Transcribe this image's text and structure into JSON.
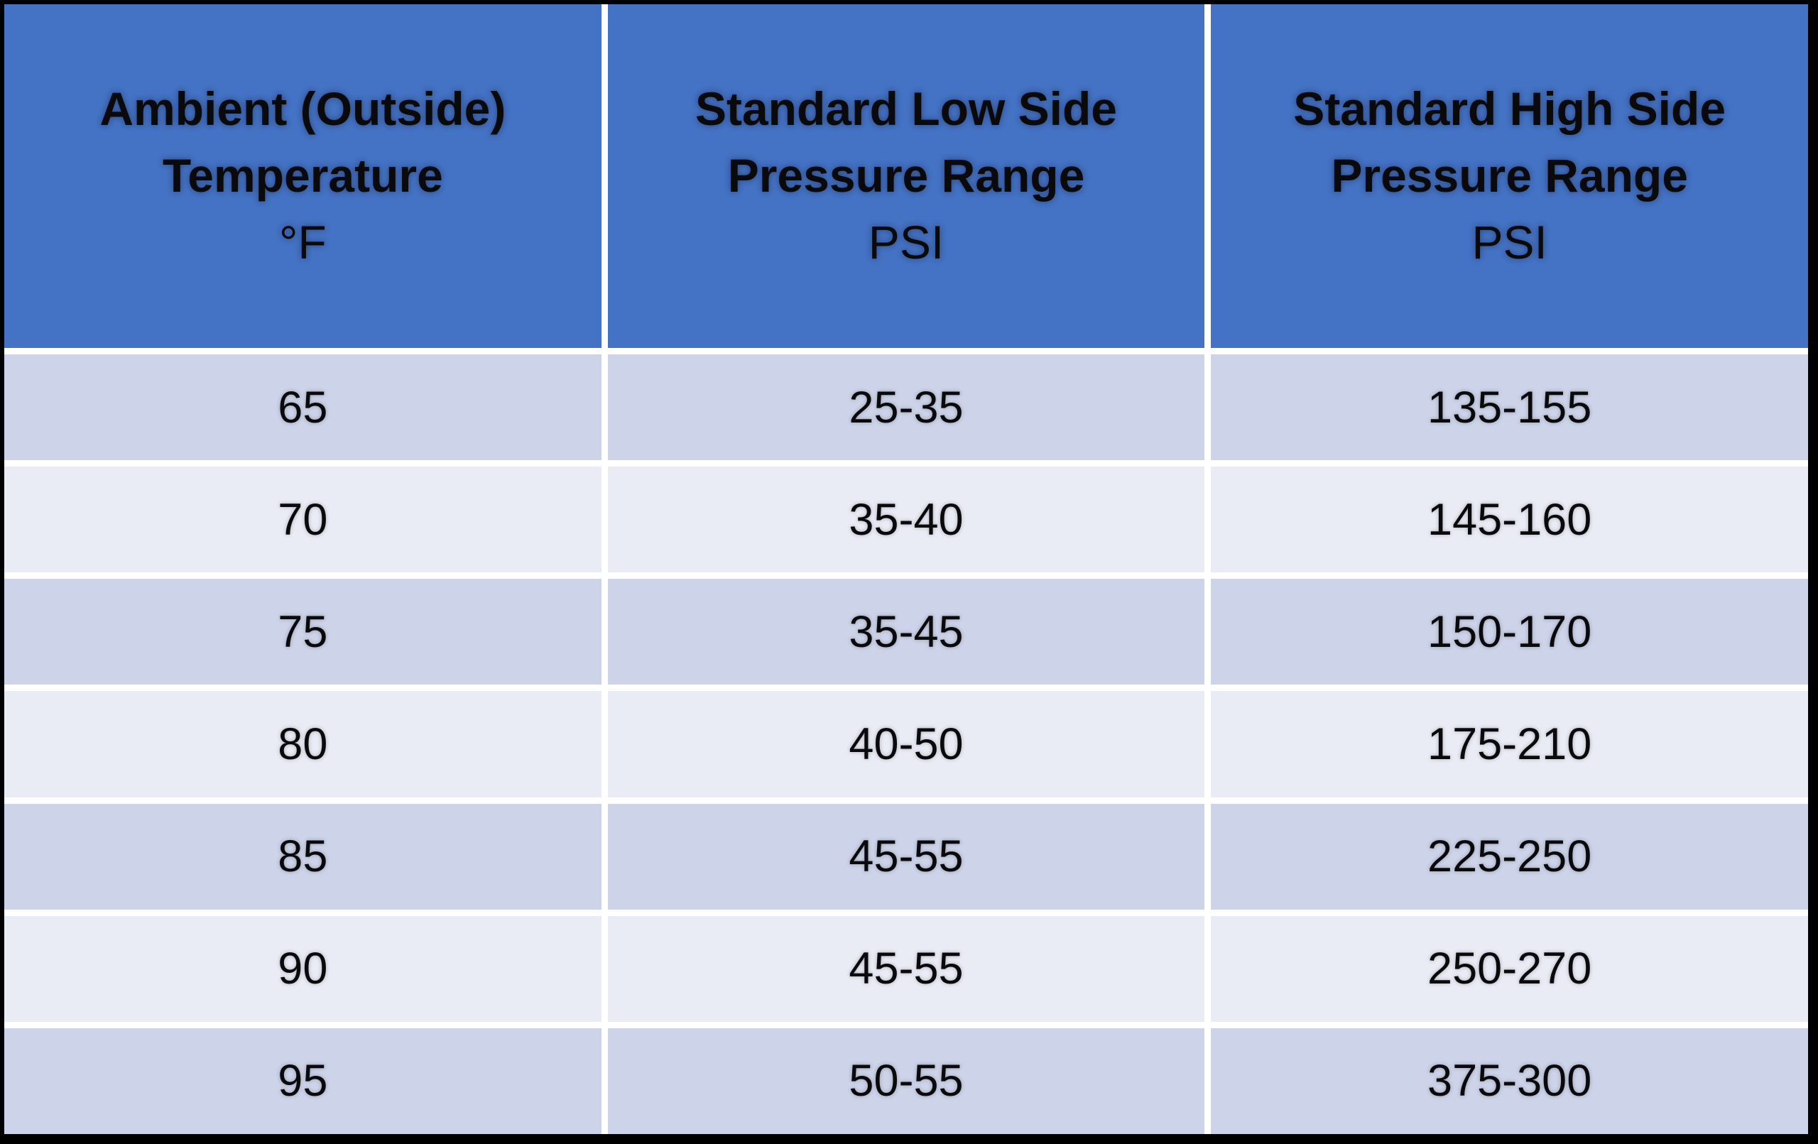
{
  "chart_data": {
    "type": "table",
    "title": "",
    "columns": [
      "Ambient (Outside) Temperature °F",
      "Standard Low Side Pressure Range PSI",
      "Standard High Side Pressure Range PSI"
    ],
    "rows": [
      [
        "65",
        "25-35",
        "135-155"
      ],
      [
        "70",
        "35-40",
        "145-160"
      ],
      [
        "75",
        "35-45",
        "150-170"
      ],
      [
        "80",
        "40-50",
        "175-210"
      ],
      [
        "85",
        "45-55",
        "225-250"
      ],
      [
        "90",
        "45-55",
        "250-270"
      ],
      [
        "95",
        "50-55",
        "375-300"
      ]
    ]
  },
  "header": {
    "col1": {
      "line1": "Ambient (Outside)",
      "line2": "Temperature",
      "unit": "°F"
    },
    "col2": {
      "line1": "Standard Low Side",
      "line2": "Pressure Range",
      "unit": "PSI"
    },
    "col3": {
      "line1": "Standard High Side",
      "line2": "Pressure Range",
      "unit": "PSI"
    }
  },
  "colors": {
    "header_bg": "#4472C4",
    "band_dark": "#CDD3E8",
    "band_light": "#E9EBF5",
    "grid_line": "#FFFFFF",
    "frame": "#000000",
    "text": "#0A0A0C"
  }
}
